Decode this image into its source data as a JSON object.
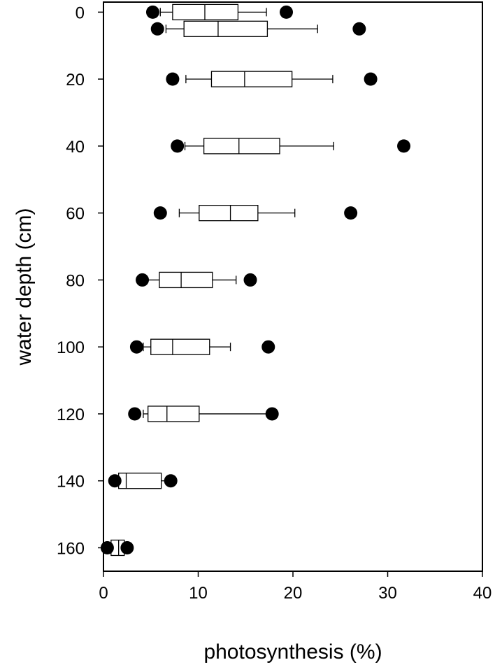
{
  "chart_data": {
    "type": "boxplot",
    "orientation": "horizontal",
    "xlabel": "photosynthesis (%)",
    "ylabel": "water depth (cm)",
    "xlim": [
      0,
      40
    ],
    "ylim": [
      -3,
      167
    ],
    "y_reversed": true,
    "x_ticks": [
      0,
      10,
      20,
      30,
      40
    ],
    "y_ticks": [
      0,
      20,
      40,
      60,
      80,
      100,
      120,
      140,
      160
    ],
    "grid": false,
    "boxes": [
      {
        "depth": 0,
        "whisker_low": 6.0,
        "q1": 7.3,
        "median": 10.7,
        "q3": 14.2,
        "whisker_high": 17.2,
        "outliers": [
          5.2,
          19.3
        ]
      },
      {
        "depth": 5,
        "whisker_low": 6.6,
        "q1": 8.5,
        "median": 12.1,
        "q3": 17.3,
        "whisker_high": 22.6,
        "outliers": [
          5.7,
          27.0
        ]
      },
      {
        "depth": 20,
        "whisker_low": 8.7,
        "q1": 11.4,
        "median": 14.9,
        "q3": 19.9,
        "whisker_high": 24.2,
        "outliers": [
          7.3,
          28.2
        ]
      },
      {
        "depth": 40,
        "whisker_low": 8.6,
        "q1": 10.6,
        "median": 14.3,
        "q3": 18.6,
        "whisker_high": 24.3,
        "outliers": [
          7.8,
          31.7
        ]
      },
      {
        "depth": 60,
        "whisker_low": 8.0,
        "q1": 10.1,
        "median": 13.4,
        "q3": 16.3,
        "whisker_high": 20.2,
        "outliers": [
          6.0,
          26.1
        ]
      },
      {
        "depth": 80,
        "whisker_low": 4.4,
        "q1": 5.9,
        "median": 8.2,
        "q3": 11.5,
        "whisker_high": 14.0,
        "outliers": [
          4.1,
          15.5
        ]
      },
      {
        "depth": 100,
        "whisker_low": 4.2,
        "q1": 5.0,
        "median": 7.3,
        "q3": 11.2,
        "whisker_high": 13.4,
        "outliers": [
          3.5,
          17.4
        ]
      },
      {
        "depth": 120,
        "whisker_low": 4.2,
        "q1": 4.7,
        "median": 6.7,
        "q3": 10.1,
        "whisker_high": 17.8,
        "outliers": [
          3.3,
          17.8
        ]
      },
      {
        "depth": 140,
        "whisker_low": 1.3,
        "q1": 1.6,
        "median": 2.4,
        "q3": 6.1,
        "whisker_high": 6.9,
        "outliers": [
          1.2,
          7.1
        ]
      },
      {
        "depth": 160,
        "whisker_low": 0.5,
        "q1": 0.8,
        "median": 1.6,
        "q3": 2.2,
        "whisker_high": 2.4,
        "outliers": [
          0.4,
          2.5
        ]
      }
    ]
  }
}
